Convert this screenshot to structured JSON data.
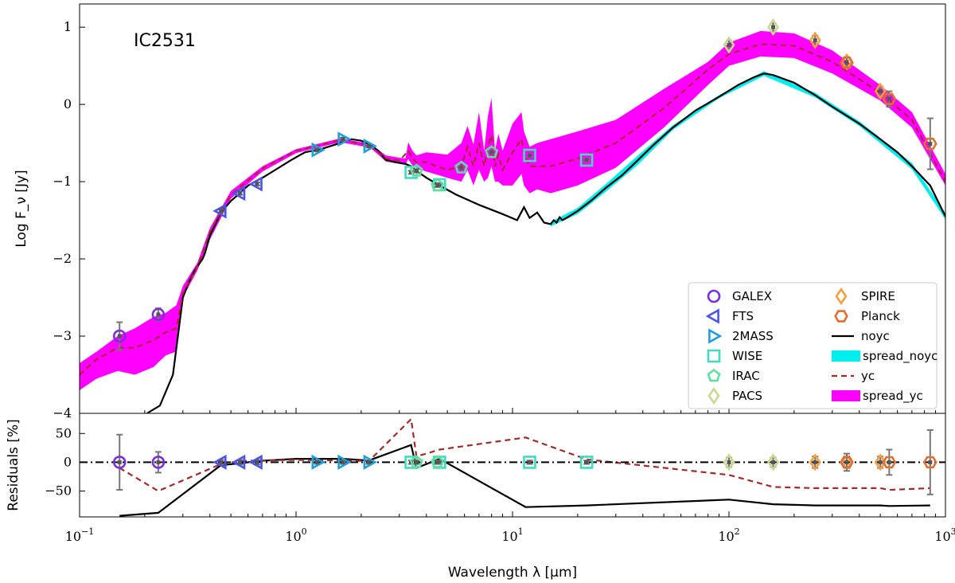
{
  "chart_data": {
    "type": "line",
    "title": "IC2531",
    "xlabel": "Wavelength λ [μm]",
    "xscale": "log",
    "xlim": [
      0.1,
      1000
    ],
    "xticks": [
      {
        "value": 0.1,
        "base": "10",
        "exp": "−1"
      },
      {
        "value": 1,
        "base": "10",
        "exp": "0"
      },
      {
        "value": 10,
        "base": "10",
        "exp": "1"
      },
      {
        "value": 100,
        "base": "10",
        "exp": "2"
      },
      {
        "value": 1000,
        "base": "10",
        "exp": "3"
      }
    ],
    "main_panel": {
      "ylabel": "Log F_ν [Jy]",
      "ylim": [
        -4,
        1.3
      ],
      "yticks": [
        {
          "value": -4,
          "label": "−4"
        },
        {
          "value": -3,
          "label": "−3"
        },
        {
          "value": -2,
          "label": "−2"
        },
        {
          "value": -1,
          "label": "−1"
        },
        {
          "value": 0,
          "label": "0"
        },
        {
          "value": 1,
          "label": "1"
        }
      ],
      "series": [
        {
          "name": "noyc",
          "style": "solid",
          "color": "#000000",
          "x": [
            0.205,
            0.235,
            0.27,
            0.3,
            0.32,
            0.34,
            0.37,
            0.38,
            0.4,
            0.45,
            0.5,
            0.55,
            0.6,
            0.7,
            0.8,
            0.95,
            1.1,
            1.3,
            1.6,
            1.8,
            2.0,
            2.2,
            2.4,
            2.6,
            2.9,
            3.2,
            3.4,
            3.6,
            4.0,
            4.6,
            5.5,
            7,
            9,
            10.5,
            11.3,
            12,
            13,
            14,
            15,
            15.5,
            16,
            16.5,
            17,
            18,
            20,
            23,
            27,
            32,
            38,
            45,
            55,
            70,
            90,
            110,
            130,
            145,
            160,
            200,
            250,
            300,
            400,
            500,
            600,
            700,
            850,
            1000
          ],
          "y": [
            -3.999,
            -3.9,
            -3.5,
            -2.5,
            -2.3,
            -2.15,
            -2.0,
            -1.92,
            -1.7,
            -1.4,
            -1.25,
            -1.15,
            -1.05,
            -0.95,
            -0.85,
            -0.72,
            -0.62,
            -0.58,
            -0.5,
            -0.45,
            -0.47,
            -0.52,
            -0.6,
            -0.72,
            -0.75,
            -0.77,
            -0.8,
            -0.86,
            -0.95,
            -1.05,
            -1.17,
            -1.3,
            -1.42,
            -1.5,
            -1.33,
            -1.47,
            -1.4,
            -1.53,
            -1.55,
            -1.5,
            -1.53,
            -1.46,
            -1.5,
            -1.46,
            -1.38,
            -1.25,
            -1.08,
            -0.92,
            -0.72,
            -0.52,
            -0.3,
            -0.08,
            0.1,
            0.25,
            0.35,
            0.4,
            0.38,
            0.28,
            0.12,
            -0.03,
            -0.25,
            -0.45,
            -0.62,
            -0.8,
            -1.05,
            -1.45
          ]
        },
        {
          "name": "spread_noyc",
          "style": "band",
          "color": "#00eeee",
          "x": [
            15,
            20,
            27,
            38,
            55,
            90,
            145,
            250,
            400,
            700,
            1000
          ],
          "ylow": [
            -1.58,
            -1.42,
            -1.13,
            -0.78,
            -0.33,
            0.08,
            0.37,
            0.09,
            -0.28,
            -0.84,
            -1.49
          ],
          "yhigh": [
            -1.52,
            -1.34,
            -1.03,
            -0.66,
            -0.27,
            0.12,
            0.43,
            0.15,
            -0.22,
            -0.76,
            -1.41
          ]
        },
        {
          "name": "spread_yc",
          "style": "band",
          "color": "#ff00ff",
          "x": [
            0.1,
            0.12,
            0.15,
            0.18,
            0.22,
            0.25,
            0.28,
            0.3,
            0.35,
            0.4,
            0.5,
            0.7,
            1,
            1.6,
            2.2,
            2.6,
            3.0,
            3.2,
            3.3,
            3.45,
            3.6,
            4,
            5,
            5.8,
            6.2,
            6.6,
            7.0,
            7.4,
            7.7,
            8.0,
            8.3,
            8.6,
            9.0,
            10,
            11,
            11.3,
            12,
            13,
            15,
            20,
            30,
            50,
            80,
            100,
            140,
            200,
            300,
            500,
            700,
            1000
          ],
          "ylow": [
            -3.7,
            -3.55,
            -3.45,
            -3.5,
            -3.4,
            -3.25,
            -3.2,
            -2.5,
            -2.15,
            -1.75,
            -1.22,
            -0.87,
            -0.63,
            -0.49,
            -0.56,
            -0.74,
            -0.77,
            -0.78,
            -0.71,
            -0.79,
            -0.83,
            -0.87,
            -0.95,
            -1.0,
            -0.85,
            -1.05,
            -0.85,
            -1.0,
            -0.95,
            -0.8,
            -1.0,
            -1.0,
            -1.05,
            -1.05,
            -0.9,
            -1.05,
            -1.15,
            -1.1,
            -1.15,
            -1.05,
            -0.82,
            -0.3,
            0.25,
            0.5,
            0.62,
            0.6,
            0.4,
            0.05,
            -0.3,
            -1.05
          ],
          "yhigh": [
            -3.35,
            -3.2,
            -3.0,
            -2.9,
            -2.75,
            -2.7,
            -2.6,
            -2.35,
            -2.05,
            -1.6,
            -1.12,
            -0.8,
            -0.58,
            -0.44,
            -0.51,
            -0.66,
            -0.69,
            -0.7,
            -0.49,
            -0.6,
            -0.66,
            -0.62,
            -0.65,
            -0.5,
            -0.28,
            -0.52,
            -0.1,
            -0.6,
            -0.15,
            0.08,
            -0.6,
            -0.38,
            -0.6,
            -0.25,
            -0.1,
            -0.35,
            -0.55,
            -0.5,
            -0.45,
            -0.35,
            -0.2,
            0.2,
            0.55,
            0.8,
            0.95,
            0.92,
            0.7,
            0.25,
            -0.1,
            -0.9
          ]
        },
        {
          "name": "yc",
          "style": "dashed",
          "color": "#a52a2a",
          "x": [
            0.1,
            0.12,
            0.15,
            0.18,
            0.22,
            0.25,
            0.28,
            0.3,
            0.35,
            0.4,
            0.5,
            0.7,
            1,
            1.6,
            2.2,
            2.6,
            3.0,
            3.3,
            3.45,
            3.6,
            4,
            5,
            5.8,
            6.2,
            6.6,
            7.0,
            7.4,
            7.7,
            8.0,
            8.3,
            8.6,
            9.0,
            10,
            11,
            11.3,
            12,
            13,
            15,
            20,
            30,
            50,
            80,
            100,
            140,
            200,
            300,
            500,
            700,
            1000
          ],
          "y": [
            -3.5,
            -3.3,
            -3.15,
            -3.15,
            -3.05,
            -2.95,
            -2.9,
            -2.45,
            -2.1,
            -1.65,
            -1.17,
            -0.83,
            -0.6,
            -0.46,
            -0.53,
            -0.7,
            -0.73,
            -0.6,
            -0.7,
            -0.75,
            -0.75,
            -0.85,
            -0.8,
            -0.55,
            -0.8,
            -0.5,
            -0.8,
            -0.55,
            -0.4,
            -0.8,
            -0.65,
            -0.85,
            -0.62,
            -0.45,
            -0.65,
            -0.8,
            -0.8,
            -0.8,
            -0.7,
            -0.5,
            -0.05,
            0.45,
            0.65,
            0.78,
            0.76,
            0.55,
            0.15,
            -0.2,
            -1.0
          ]
        }
      ],
      "observations": [
        {
          "band": "GALEX",
          "marker": "circle",
          "color": "#7b2ee0",
          "x": [
            0.153,
            0.231
          ],
          "y": [
            -3.0,
            -2.72
          ],
          "err": [
            0.18,
            0.08
          ]
        },
        {
          "band": "FTS",
          "marker": "triangle-left",
          "color": "#4a55e8",
          "x": [
            0.45,
            0.55,
            0.66
          ],
          "y": [
            -1.38,
            -1.15,
            -1.03
          ],
          "err": [
            0.02,
            0.02,
            0.02
          ]
        },
        {
          "band": "2MASS",
          "marker": "triangle-right",
          "color": "#1f9fdc",
          "x": [
            1.25,
            1.65,
            2.17
          ],
          "y": [
            -0.59,
            -0.45,
            -0.54
          ],
          "err": [
            0.02,
            0.02,
            0.02
          ]
        },
        {
          "band": "WISE",
          "marker": "square",
          "color": "#40dcc0",
          "x": [
            3.4,
            4.6,
            12,
            22
          ],
          "y": [
            -0.88,
            -1.04,
            -0.66,
            -0.72
          ],
          "err": [
            0.02,
            0.02,
            0.02,
            0.02
          ]
        },
        {
          "band": "IRAC",
          "marker": "pentagon",
          "color": "#60e0a0",
          "x": [
            3.6,
            4.5,
            5.8,
            8.0
          ],
          "y": [
            -0.86,
            -1.05,
            -0.82,
            -0.62
          ],
          "err": [
            0.02,
            0.02,
            0.02,
            0.02
          ]
        },
        {
          "band": "PACS",
          "marker": "diamond",
          "color": "#c8d890",
          "x": [
            100,
            160
          ],
          "y": [
            0.77,
            1.0
          ],
          "err": [
            0.05,
            0.05
          ]
        },
        {
          "band": "SPIRE",
          "marker": "diamond",
          "color": "#f4a040",
          "x": [
            250,
            350,
            500
          ],
          "y": [
            0.83,
            0.55,
            0.17
          ],
          "err": [
            0.06,
            0.06,
            0.06
          ]
        },
        {
          "band": "Planck",
          "marker": "hexagon",
          "color": "#e07030",
          "x": [
            350,
            550,
            850
          ],
          "y": [
            0.54,
            0.07,
            -0.51
          ],
          "err": [
            0.07,
            0.1,
            0.33
          ]
        }
      ],
      "legend": {
        "placement": "bottom-right",
        "entries": [
          {
            "label": "GALEX",
            "kind": "marker",
            "marker": "circle",
            "color": "#7b2ee0"
          },
          {
            "label": "SPIRE",
            "kind": "marker",
            "marker": "diamond",
            "color": "#f4a040"
          },
          {
            "label": "FTS",
            "kind": "marker",
            "marker": "triangle-left",
            "color": "#4a55e8"
          },
          {
            "label": "Planck",
            "kind": "marker",
            "marker": "hexagon",
            "color": "#e07030"
          },
          {
            "label": "2MASS",
            "kind": "marker",
            "marker": "triangle-right",
            "color": "#1f9fdc"
          },
          {
            "label": "noyc",
            "kind": "line",
            "style": "solid",
            "color": "#000000"
          },
          {
            "label": "WISE",
            "kind": "marker",
            "marker": "square",
            "color": "#40dcc0"
          },
          {
            "label": "spread_noyc",
            "kind": "band",
            "color": "#00eeee"
          },
          {
            "label": "IRAC",
            "kind": "marker",
            "marker": "pentagon",
            "color": "#60e0a0"
          },
          {
            "label": "yc",
            "kind": "line",
            "style": "dashed",
            "color": "#a52a2a"
          },
          {
            "label": "PACS",
            "kind": "marker",
            "marker": "diamond",
            "color": "#c8d890"
          },
          {
            "label": "spread_yc",
            "kind": "band",
            "color": "#ff00ff"
          }
        ]
      }
    },
    "residual_panel": {
      "ylabel": "Residuals [%]",
      "ylim": [
        -95,
        85
      ],
      "yticks": [
        {
          "value": 50,
          "label": "50"
        },
        {
          "value": 0,
          "label": "0"
        },
        {
          "value": -50,
          "label": "−50"
        }
      ],
      "reference_line": {
        "y": 0,
        "style": "dashdot",
        "color": "#000000"
      },
      "series": [
        {
          "name": "noyc",
          "style": "solid",
          "color": "#000000",
          "x": [
            0.153,
            0.231,
            0.45,
            0.55,
            0.66,
            1.0,
            1.65,
            2.17,
            3.4,
            3.6,
            4.6,
            11.5,
            22,
            100,
            160,
            250,
            350,
            500,
            550,
            850
          ],
          "y": [
            -93,
            -88,
            -5,
            -2,
            2,
            6,
            6,
            3,
            30,
            -10,
            6,
            -78,
            -75,
            -65,
            -73,
            -75,
            -75,
            -75,
            -76,
            -75
          ]
        },
        {
          "name": "yc",
          "style": "dashed",
          "color": "#a52a2a",
          "x": [
            0.153,
            0.231,
            0.45,
            0.55,
            0.66,
            1.0,
            1.65,
            2.17,
            3.4,
            3.6,
            4.6,
            11.5,
            22,
            100,
            160,
            250,
            350,
            500,
            550,
            850
          ],
          "y": [
            -10,
            -50,
            -3,
            2,
            3,
            4,
            3,
            2,
            75,
            10,
            22,
            43,
            5,
            -22,
            -43,
            -45,
            -45,
            -45,
            -48,
            -45
          ]
        }
      ],
      "observations": [
        {
          "band": "GALEX",
          "marker": "circle",
          "color": "#7b2ee0",
          "x": [
            0.153,
            0.231
          ],
          "y": [
            0,
            0
          ],
          "err": [
            48,
            18
          ]
        },
        {
          "band": "FTS",
          "marker": "triangle-left",
          "color": "#4a55e8",
          "x": [
            0.45,
            0.55,
            0.66
          ],
          "y": [
            0,
            0,
            0
          ],
          "err": [
            4,
            4,
            4
          ]
        },
        {
          "band": "2MASS",
          "marker": "triangle-right",
          "color": "#1f9fdc",
          "x": [
            1.25,
            1.65,
            2.17
          ],
          "y": [
            0,
            0,
            0
          ],
          "err": [
            3,
            3,
            3
          ]
        },
        {
          "band": "WISE",
          "marker": "square",
          "color": "#40dcc0",
          "x": [
            3.4,
            4.6,
            12,
            22
          ],
          "y": [
            0,
            0,
            0,
            0
          ],
          "err": [
            3,
            3,
            3,
            3
          ]
        },
        {
          "band": "IRAC",
          "marker": "pentagon",
          "color": "#60e0a0",
          "x": [
            3.6,
            4.5
          ],
          "y": [
            0,
            0
          ],
          "err": [
            3,
            3
          ]
        },
        {
          "band": "PACS",
          "marker": "diamond",
          "color": "#c8d890",
          "x": [
            100,
            160
          ],
          "y": [
            0,
            0
          ],
          "err": [
            8,
            8
          ]
        },
        {
          "band": "SPIRE",
          "marker": "diamond",
          "color": "#f4a040",
          "x": [
            250,
            350,
            500
          ],
          "y": [
            0,
            0,
            0
          ],
          "err": [
            10,
            10,
            10
          ]
        },
        {
          "band": "Planck",
          "marker": "hexagon",
          "color": "#e07030",
          "x": [
            350,
            550,
            850
          ],
          "y": [
            0,
            0,
            0
          ],
          "err": [
            15,
            22,
            56
          ]
        }
      ]
    }
  }
}
